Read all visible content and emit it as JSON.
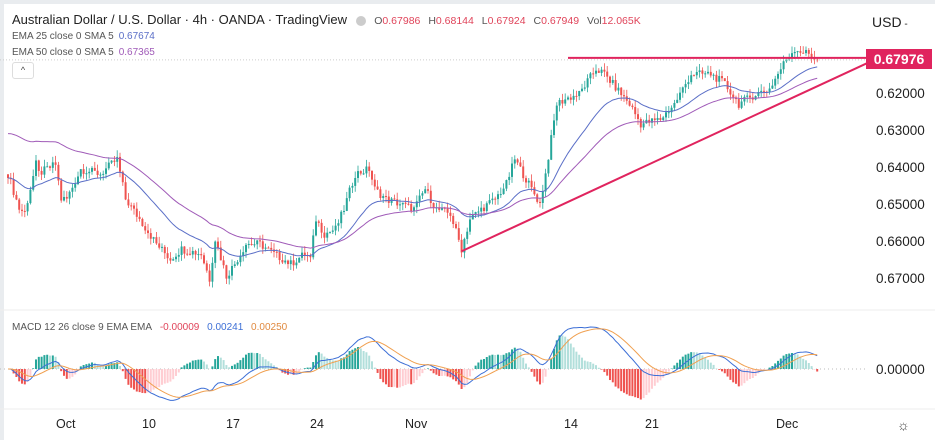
{
  "header": {
    "title": "Australian Dollar / U.S. Dollar · 4h · OANDA · TradingView",
    "ohlc": {
      "o_label": "O",
      "o": "0.67986",
      "h_label": "H",
      "h": "0.68144",
      "l_label": "L",
      "l": "0.67924",
      "c_label": "C",
      "c": "0.67949",
      "vol_label": "Vol",
      "vol": "12.065K"
    },
    "ema25": {
      "label": "EMA 25 close 0 SMA 5",
      "value": "0.67674"
    },
    "ema50": {
      "label": "EMA 50 close 0 SMA 5",
      "value": "0.67365"
    },
    "collapse": "^"
  },
  "currency": "USD",
  "currency_icon": "chevron-down-icon",
  "last_price": "0.67976",
  "price_labels": [
    "0.67000",
    "0.66000",
    "0.65000",
    "0.64000",
    "0.63000",
    "0.62000"
  ],
  "macd": {
    "label": "MACD 12 26 close 9 EMA EMA",
    "hist": "-0.00009",
    "macd": "0.00241",
    "signal": "0.00250",
    "zero_label": "0.00000"
  },
  "time_labels": [
    "Oct",
    "10",
    "17",
    "24",
    "Nov",
    "14",
    "21",
    "Dec"
  ],
  "settings_icon": "gear-icon",
  "colors": {
    "up": "#26a69a",
    "down": "#ef5350",
    "ema25": "#5b6fc7",
    "ema50": "#a05bb8",
    "line": "#e0245e",
    "macd": "#3d6fd6",
    "signal": "#f0a050"
  },
  "chart_data": {
    "type": "candlestick",
    "title": "Australian Dollar / U.S. Dollar · 4h · OANDA",
    "ylim": [
      0.615,
      0.684
    ],
    "yticks": [
      0.62,
      0.63,
      0.64,
      0.65,
      0.66,
      0.67
    ],
    "resistance": 0.67976,
    "trendline": [
      [
        162,
        0.6275
      ],
      [
        307,
        0.6784
      ]
    ],
    "close_waypoints": [
      [
        0,
        0.6484
      ],
      [
        4,
        0.639
      ],
      [
        6,
        0.638
      ],
      [
        10,
        0.651
      ],
      [
        11,
        0.6485
      ],
      [
        17,
        0.651
      ],
      [
        19,
        0.6416
      ],
      [
        21,
        0.6416
      ],
      [
        26,
        0.6497
      ],
      [
        33,
        0.6484
      ],
      [
        39,
        0.6524
      ],
      [
        42,
        0.6416
      ],
      [
        47,
        0.6362
      ],
      [
        53,
        0.6295
      ],
      [
        58,
        0.6254
      ],
      [
        62,
        0.6281
      ],
      [
        69,
        0.6268
      ],
      [
        72,
        0.62
      ],
      [
        74,
        0.6308
      ],
      [
        78,
        0.6208
      ],
      [
        81,
        0.6241
      ],
      [
        85,
        0.6295
      ],
      [
        90,
        0.6295
      ],
      [
        95,
        0.6268
      ],
      [
        101,
        0.6241
      ],
      [
        106,
        0.6268
      ],
      [
        108,
        0.6254
      ],
      [
        110,
        0.6362
      ],
      [
        113,
        0.6322
      ],
      [
        117,
        0.6335
      ],
      [
        120,
        0.6389
      ],
      [
        124,
        0.6484
      ],
      [
        129,
        0.6497
      ],
      [
        131,
        0.6443
      ],
      [
        135,
        0.6416
      ],
      [
        140,
        0.6403
      ],
      [
        145,
        0.6389
      ],
      [
        149,
        0.6443
      ],
      [
        153,
        0.6389
      ],
      [
        158,
        0.6376
      ],
      [
        162,
        0.6281
      ],
      [
        165,
        0.6362
      ],
      [
        169,
        0.6389
      ],
      [
        174,
        0.6416
      ],
      [
        178,
        0.6457
      ],
      [
        181,
        0.6524
      ],
      [
        185,
        0.647
      ],
      [
        190,
        0.6403
      ],
      [
        192,
        0.6484
      ],
      [
        196,
        0.6673
      ],
      [
        199,
        0.6686
      ],
      [
        204,
        0.67
      ],
      [
        210,
        0.6768
      ],
      [
        213,
        0.6754
      ],
      [
        219,
        0.67
      ],
      [
        222,
        0.6673
      ],
      [
        226,
        0.6619
      ],
      [
        233,
        0.6632
      ],
      [
        238,
        0.6673
      ],
      [
        244,
        0.6754
      ],
      [
        251,
        0.6754
      ],
      [
        256,
        0.6727
      ],
      [
        261,
        0.6673
      ],
      [
        267,
        0.67
      ],
      [
        272,
        0.6714
      ],
      [
        278,
        0.6795
      ],
      [
        281,
        0.6822
      ],
      [
        286,
        0.6808
      ],
      [
        289,
        0.6795
      ]
    ]
  }
}
